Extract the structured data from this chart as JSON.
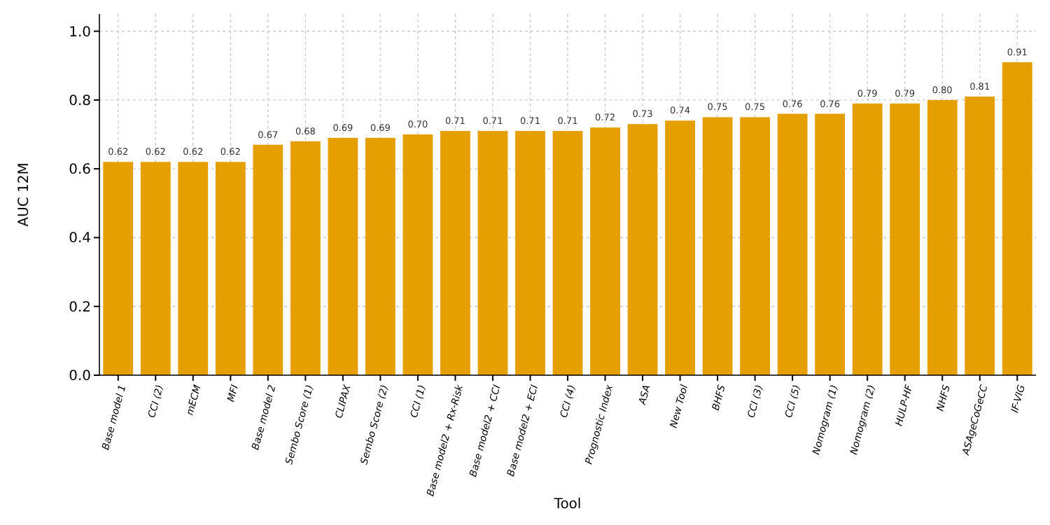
{
  "chart_data": {
    "type": "bar",
    "xlabel": "Tool",
    "ylabel": "AUC 12M",
    "categories": [
      "Base model 1",
      "CCI (2)",
      "mECM",
      "MFI",
      "Base model 2",
      "Sembo Score (1)",
      "CLIPAX",
      "Sembo Score (2)",
      "CCI (1)",
      "Base model2 + Rx-Risk",
      "Base model2 + CCI",
      "Base model2 + ECI",
      "CCI (4)",
      "Prognostic Index",
      "ASA",
      "New Tool",
      "BHFS",
      "CCI (3)",
      "CCI (5)",
      "Nomogram (1)",
      "Nomogram (2)",
      "HULP-HF",
      "NHFS",
      "ASAgeCoGeCC",
      "IF-VIG"
    ],
    "values": [
      0.62,
      0.62,
      0.62,
      0.62,
      0.67,
      0.68,
      0.69,
      0.69,
      0.7,
      0.71,
      0.71,
      0.71,
      0.71,
      0.72,
      0.73,
      0.74,
      0.75,
      0.75,
      0.76,
      0.76,
      0.79,
      0.79,
      0.8,
      0.81,
      0.91
    ],
    "value_labels": [
      "0.62",
      "0.62",
      "0.62",
      "0.62",
      "0.67",
      "0.68",
      "0.69",
      "0.69",
      "0.70",
      "0.71",
      "0.71",
      "0.71",
      "0.71",
      "0.72",
      "0.73",
      "0.74",
      "0.75",
      "0.75",
      "0.76",
      "0.76",
      "0.79",
      "0.79",
      "0.80",
      "0.81",
      "0.91"
    ],
    "color": "#e69f00",
    "ylim": [
      0,
      1.05
    ],
    "yticks": [
      {
        "value": 0,
        "label": "0.0"
      },
      {
        "value": 0.2,
        "label": "0.2"
      },
      {
        "value": 0.4,
        "label": "0.4"
      },
      {
        "value": 0.6,
        "label": "0.6"
      },
      {
        "value": 0.8,
        "label": "0.8"
      },
      {
        "value": 1,
        "label": "1.0"
      }
    ],
    "grid": true
  }
}
